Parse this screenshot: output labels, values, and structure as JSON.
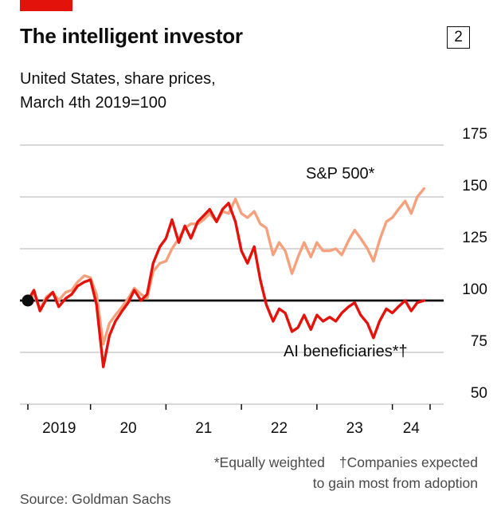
{
  "colors": {
    "brand_red": "#e3120b",
    "ai_line": "#e3120b",
    "sp500_line": "#f6a17e",
    "gridline": "#cbcbcb",
    "baseline": "#0d0d0d",
    "footnote_gray": "#4a4a4a"
  },
  "header": {
    "title": "The intelligent investor",
    "figure_number": "2",
    "subtitle_line1": "United States, share prices,",
    "subtitle_line2": "March 4th 2019=100"
  },
  "chart_data": {
    "type": "line",
    "title": "The intelligent investor",
    "subtitle": "United States, share prices, March 4th 2019=100",
    "xlabel": "",
    "ylabel": "",
    "xlim": [
      2019.17,
      2024.5
    ],
    "ylim": [
      50,
      175
    ],
    "y_ticks": [
      50,
      75,
      100,
      125,
      150,
      175
    ],
    "x_tick_labels": [
      "2019",
      "20",
      "21",
      "22",
      "23",
      "24"
    ],
    "baseline": 100,
    "grid": "horizontal",
    "legend_position": "inline-annotations",
    "start_marker": {
      "x": 2019.17,
      "y": 100
    },
    "x": [
      2019.17,
      2019.25,
      2019.33,
      2019.42,
      2019.5,
      2019.58,
      2019.67,
      2019.75,
      2019.83,
      2019.92,
      2020,
      2020.08,
      2020.17,
      2020.25,
      2020.33,
      2020.42,
      2020.5,
      2020.58,
      2020.67,
      2020.75,
      2020.83,
      2020.92,
      2021,
      2021.08,
      2021.17,
      2021.25,
      2021.33,
      2021.42,
      2021.5,
      2021.58,
      2021.67,
      2021.75,
      2021.83,
      2021.92,
      2022,
      2022.08,
      2022.17,
      2022.25,
      2022.33,
      2022.42,
      2022.5,
      2022.58,
      2022.67,
      2022.75,
      2022.83,
      2022.92,
      2023,
      2023.08,
      2023.17,
      2023.25,
      2023.33,
      2023.42,
      2023.5,
      2023.58,
      2023.67,
      2023.75,
      2023.83,
      2023.92,
      2024,
      2024.08,
      2024.17,
      2024.25,
      2024.33,
      2024.42
    ],
    "series": [
      {
        "id": "sp500",
        "name": "S&P 500*",
        "color": "#f6a17e",
        "values": [
          100,
          103,
          96,
          102,
          104,
          100,
          104,
          105,
          109,
          112,
          111,
          103,
          79,
          89,
          93,
          97,
          101,
          106,
          103,
          101,
          114,
          118,
          119,
          125,
          130,
          135,
          137,
          137,
          139,
          142,
          138,
          143,
          142,
          149,
          142,
          140,
          143,
          137,
          135,
          122,
          128,
          124,
          113,
          121,
          128,
          121,
          128,
          124,
          124,
          125,
          122,
          129,
          134,
          130,
          125,
          119,
          129,
          138,
          140,
          144,
          148,
          142,
          150,
          154
        ]
      },
      {
        "id": "ai",
        "name": "AI beneficiaries*†",
        "color": "#e3120b",
        "values": [
          100,
          105,
          95,
          101,
          104,
          97,
          101,
          103,
          107,
          109,
          110,
          98,
          68,
          83,
          90,
          95,
          99,
          105,
          100,
          103,
          118,
          126,
          130,
          139,
          128,
          136,
          130,
          138,
          141,
          144,
          138,
          144,
          147,
          138,
          124,
          118,
          126,
          110,
          98,
          90,
          96,
          94,
          85,
          87,
          93,
          86,
          93,
          90,
          92,
          90,
          94,
          97,
          99,
          93,
          89,
          82,
          90,
          96,
          94,
          97,
          100,
          95,
          99,
          100
        ]
      }
    ]
  },
  "footer": {
    "footnote_equally_weighted": "*Equally weighted",
    "footnote_companies_line1": "†Companies expected",
    "footnote_companies_line2": "to gain most from adoption",
    "source": "Source: Goldman Sachs"
  }
}
